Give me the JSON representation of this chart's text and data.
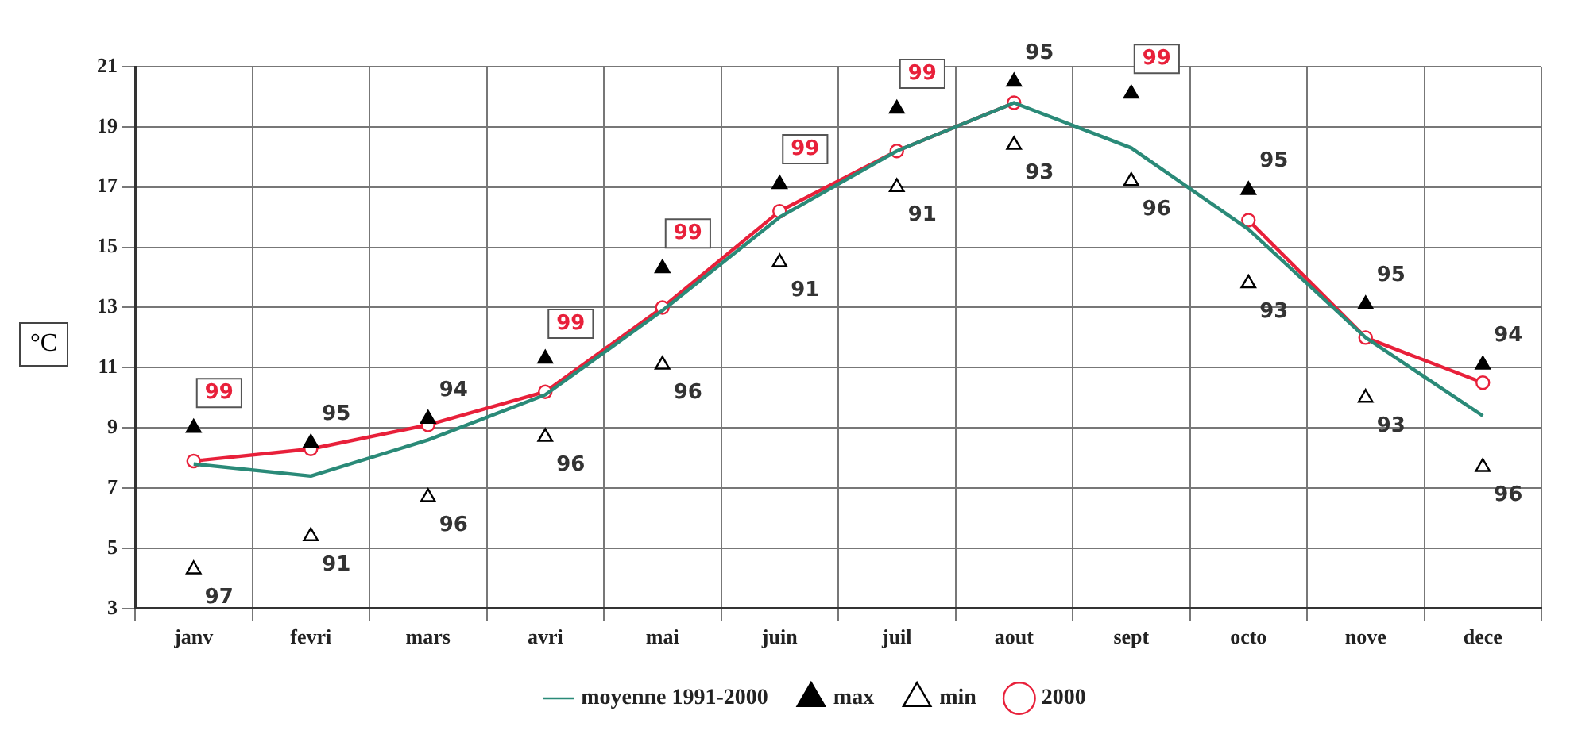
{
  "chart_data": {
    "type": "line",
    "ylabel": "°C",
    "categories": [
      "janv",
      "fevri",
      "mars",
      "avri",
      "mai",
      "juin",
      "juil",
      "aout",
      "sept",
      "octo",
      "nove",
      "dece"
    ],
    "series": [
      {
        "name": "moyenne 1991-2000",
        "color": "#2a8a78",
        "marker": "none",
        "values": [
          7.8,
          7.4,
          8.6,
          10.1,
          12.9,
          16.0,
          18.2,
          19.8,
          18.3,
          15.6,
          12.0,
          9.4
        ]
      },
      {
        "name": "max",
        "type": "scatter",
        "color": "#000000",
        "marker": "triangle",
        "values": [
          9.0,
          8.5,
          9.3,
          11.3,
          14.3,
          17.1,
          19.6,
          20.5,
          20.1,
          16.9,
          13.1,
          11.1
        ]
      },
      {
        "name": "min",
        "type": "scatter",
        "color": "#000000",
        "marker": "triangle",
        "values": [
          4.3,
          5.4,
          6.7,
          8.7,
          11.1,
          14.5,
          17.0,
          18.4,
          17.2,
          13.8,
          10.0,
          7.7
        ]
      },
      {
        "name": "2000",
        "color": "#e8203a",
        "marker": "circle",
        "values": [
          7.9,
          8.3,
          9.1,
          10.2,
          13.0,
          16.2,
          18.2,
          19.8,
          null,
          15.9,
          12.0,
          10.5
        ]
      }
    ],
    "annotations": [
      {
        "text": "99",
        "x": "janv",
        "y": 9.0
      },
      {
        "text": "95",
        "x": "fevri",
        "y": 8.5
      },
      {
        "text": "94",
        "x": "mars",
        "y": 9.3
      },
      {
        "text": "99",
        "x": "avri",
        "y": 11.3
      },
      {
        "text": "99",
        "x": "mai",
        "y": 14.3
      },
      {
        "text": "99",
        "x": "juin",
        "y": 17.1
      },
      {
        "text": "99",
        "x": "juil",
        "y": 19.6
      },
      {
        "text": "95",
        "x": "aout",
        "y": 20.5
      },
      {
        "text": "99",
        "x": "sept",
        "y": 20.1
      },
      {
        "text": "95",
        "x": "octo",
        "y": 16.9
      },
      {
        "text": "95",
        "x": "nove",
        "y": 13.1
      },
      {
        "text": "94",
        "x": "dece",
        "y": 11.1
      },
      {
        "text": "97",
        "x": "janv",
        "y": 4.3
      },
      {
        "text": "91",
        "x": "fevri",
        "y": 5.4
      },
      {
        "text": "96",
        "x": "mars",
        "y": 6.7
      },
      {
        "text": "96",
        "x": "avri",
        "y": 8.7
      },
      {
        "text": "96",
        "x": "mai",
        "y": 11.1
      },
      {
        "text": "91",
        "x": "juin",
        "y": 14.5
      },
      {
        "text": "91",
        "x": "juil",
        "y": 17.0
      },
      {
        "text": "93",
        "x": "aout",
        "y": 18.4
      },
      {
        "text": "96",
        "x": "sept",
        "y": 17.2
      },
      {
        "text": "93",
        "x": "octo",
        "y": 13.8
      },
      {
        "text": "93",
        "x": "nove",
        "y": 10.0
      },
      {
        "text": "96",
        "x": "dece",
        "y": 7.7
      }
    ],
    "ylim": [
      3,
      21
    ],
    "yticks": [
      3,
      5,
      7,
      9,
      11,
      13,
      15,
      17,
      19,
      21
    ],
    "grid": true,
    "legend": "bottom"
  }
}
